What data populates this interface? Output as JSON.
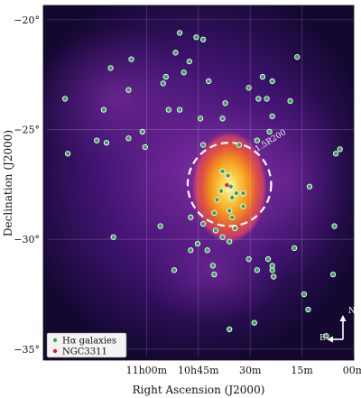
{
  "chart_data": {
    "type": "scatter",
    "title": "",
    "xlabel": "Right Ascension (J2000)",
    "ylabel": "Declination (J2000)",
    "xlim": [
      172.47,
      150.0
    ],
    "ylim": [
      -35.5,
      -19.35
    ],
    "x_ticks": [
      {
        "value": 165.0,
        "label": "11h00m"
      },
      {
        "value": 161.25,
        "label": "10h45m"
      },
      {
        "value": 157.5,
        "label": "30m"
      },
      {
        "value": 153.75,
        "label": "15m"
      },
      {
        "value": 150.0,
        "label": "00m"
      }
    ],
    "y_ticks": [
      {
        "value": -20,
        "label": "−20°"
      },
      {
        "value": -25,
        "label": "−25°"
      },
      {
        "value": -30,
        "label": "−30°"
      },
      {
        "value": -35,
        "label": "−35°"
      }
    ],
    "grid": true,
    "density_peak": {
      "ra": 159.0,
      "dec": -27.5
    },
    "circle": {
      "center_ra": 159.0,
      "center_dec": -27.5,
      "radius_deg": 1.9,
      "label": "1.5R200"
    },
    "legend": {
      "placement": "bottom-left",
      "entries": [
        {
          "label": "Hα galaxies",
          "color": "#2fa84f"
        },
        {
          "label": "NGC3311",
          "color": "#e02020"
        }
      ]
    },
    "compass": {
      "north": "N",
      "east": "E"
    },
    "series": [
      {
        "name": "Hα galaxies",
        "color": "#2fa84f",
        "points": [
          [
            162.6,
            -20.6
          ],
          [
            161.4,
            -20.8
          ],
          [
            160.9,
            -20.9
          ],
          [
            166.1,
            -21.8
          ],
          [
            162.9,
            -21.5
          ],
          [
            161.9,
            -21.9
          ],
          [
            154.1,
            -21.7
          ],
          [
            162.3,
            -22.4
          ],
          [
            163.6,
            -22.6
          ],
          [
            167.6,
            -22.2
          ],
          [
            163.8,
            -22.9
          ],
          [
            156.6,
            -22.6
          ],
          [
            155.9,
            -22.8
          ],
          [
            157.6,
            -23.1
          ],
          [
            160.5,
            -22.8
          ],
          [
            156.9,
            -23.6
          ],
          [
            156.3,
            -23.6
          ],
          [
            166.3,
            -23.2
          ],
          [
            170.9,
            -23.6
          ],
          [
            154.6,
            -23.7
          ],
          [
            159.3,
            -23.8
          ],
          [
            155.9,
            -24.4
          ],
          [
            168.1,
            -24.1
          ],
          [
            163.4,
            -24.1
          ],
          [
            162.6,
            -24.1
          ],
          [
            161.1,
            -24.5
          ],
          [
            159.5,
            -24.5
          ],
          [
            156.1,
            -25.1
          ],
          [
            165.3,
            -25.1
          ],
          [
            166.3,
            -25.4
          ],
          [
            160.9,
            -25.7
          ],
          [
            158.3,
            -25.7
          ],
          [
            157.0,
            -25.5
          ],
          [
            168.6,
            -25.5
          ],
          [
            165.1,
            -25.8
          ],
          [
            167.9,
            -25.6
          ],
          [
            170.7,
            -26.1
          ],
          [
            151.0,
            -25.9
          ],
          [
            151.3,
            -26.1
          ],
          [
            159.5,
            -26.9
          ],
          [
            159.1,
            -27.1
          ],
          [
            158.9,
            -27.6
          ],
          [
            159.6,
            -27.8
          ],
          [
            158.5,
            -27.9
          ],
          [
            158.0,
            -27.9
          ],
          [
            159.9,
            -28.2
          ],
          [
            158.8,
            -28.1
          ],
          [
            158.0,
            -28.5
          ],
          [
            159.0,
            -28.7
          ],
          [
            158.8,
            -29.0
          ],
          [
            160.1,
            -28.8
          ],
          [
            153.2,
            -27.6
          ],
          [
            161.8,
            -29.0
          ],
          [
            160.0,
            -29.6
          ],
          [
            160.9,
            -29.3
          ],
          [
            164.0,
            -29.4
          ],
          [
            158.6,
            -29.5
          ],
          [
            151.4,
            -29.4
          ],
          [
            167.4,
            -29.9
          ],
          [
            159.5,
            -29.9
          ],
          [
            159.0,
            -30.1
          ],
          [
            160.6,
            -30.5
          ],
          [
            154.3,
            -30.4
          ],
          [
            161.3,
            -30.2
          ],
          [
            161.8,
            -30.5
          ],
          [
            156.2,
            -30.9
          ],
          [
            157.6,
            -30.9
          ],
          [
            160.2,
            -31.2
          ],
          [
            155.9,
            -31.4
          ],
          [
            157.0,
            -31.4
          ],
          [
            163.0,
            -31.4
          ],
          [
            155.9,
            -31.2
          ],
          [
            160.1,
            -31.6
          ],
          [
            151.5,
            -31.6
          ],
          [
            155.8,
            -31.7
          ],
          [
            153.6,
            -32.5
          ],
          [
            153.3,
            -33.2
          ],
          [
            157.2,
            -33.8
          ],
          [
            159.0,
            -34.1
          ],
          [
            152.0,
            -34.4
          ]
        ]
      },
      {
        "name": "NGC3311",
        "color": "#e02020",
        "points": [
          [
            159.18,
            -27.53
          ]
        ]
      }
    ]
  }
}
